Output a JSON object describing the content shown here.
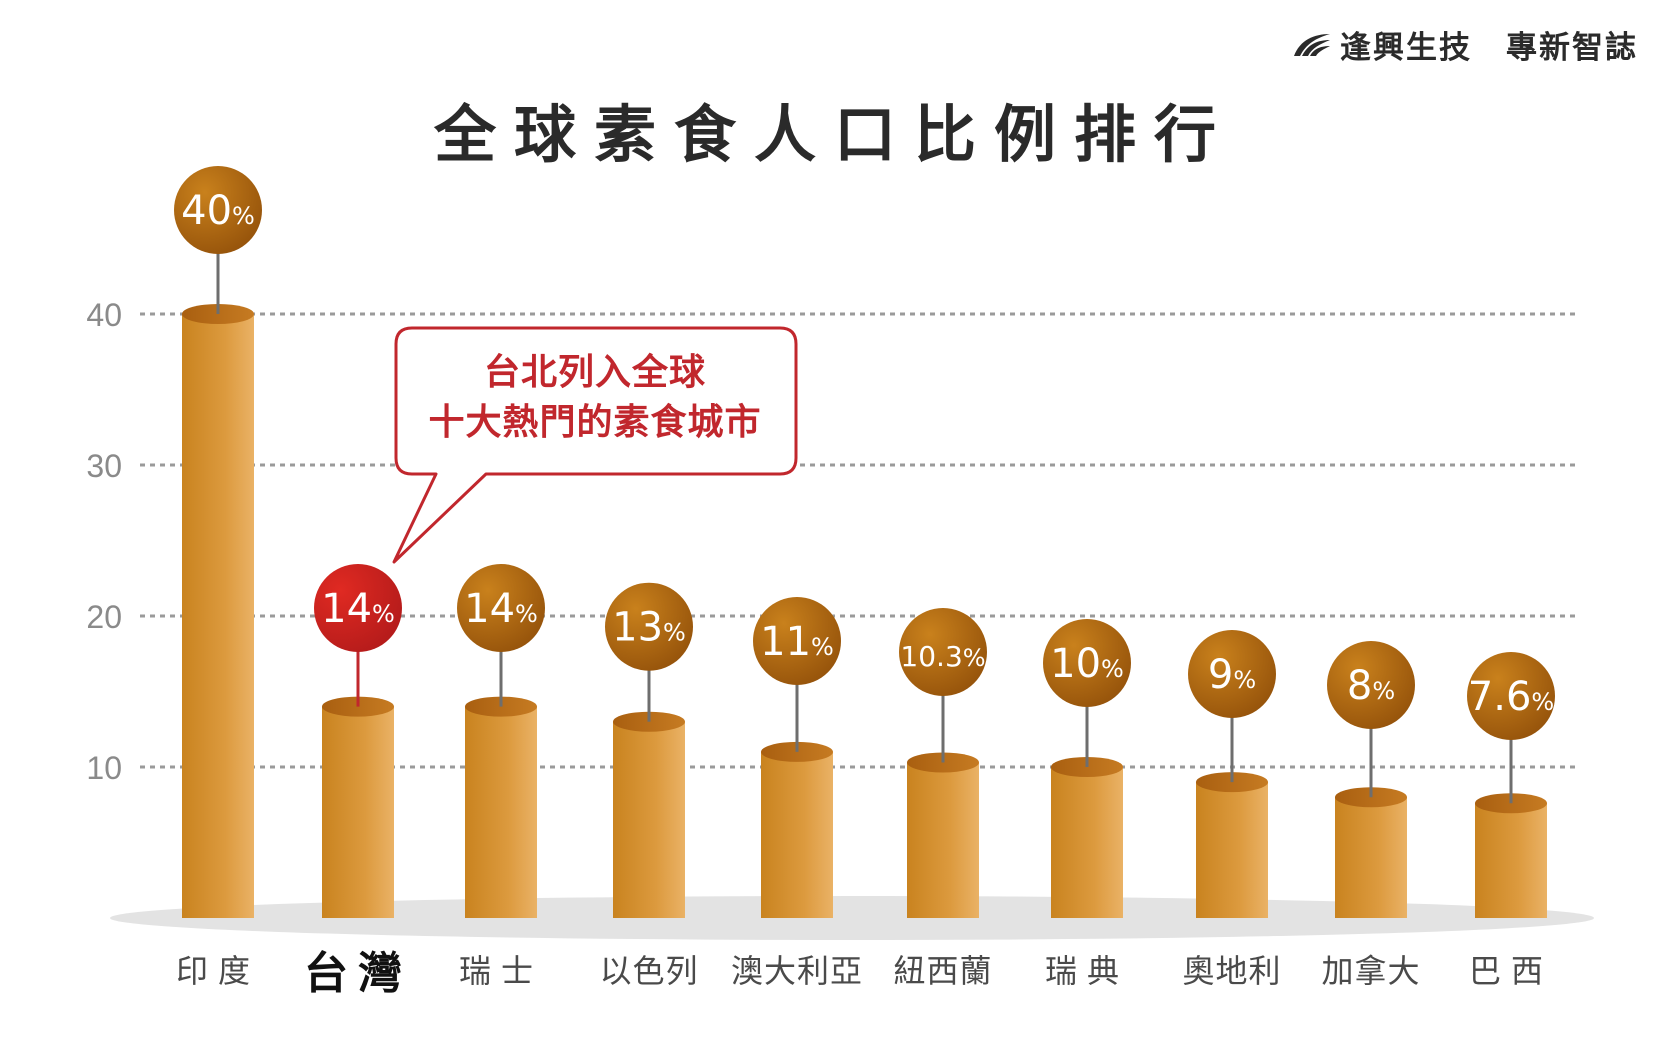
{
  "brand": {
    "name": "逢興生技",
    "publication": "專新智誌",
    "logo_icon": "swoosh-logo-icon"
  },
  "colors": {
    "bar": "#d9952f",
    "bubble": "#a8620a",
    "highlight": "#c1272d",
    "grid": "#9a9a9a",
    "callout_border": "#c1272d"
  },
  "callout": {
    "line1": "台北列入全球",
    "line2": "十大熱門的素食城市"
  },
  "chart_data": {
    "type": "bar",
    "title": "全球素食人口比例排行",
    "categories": [
      "印度",
      "台灣",
      "瑞士",
      "以色列",
      "澳大利亞",
      "紐西蘭",
      "瑞典",
      "奧地利",
      "加拿大",
      "巴西"
    ],
    "values": [
      40,
      14,
      14,
      13,
      11,
      10.3,
      10,
      9,
      8,
      7.6
    ],
    "value_labels": [
      "40",
      "14",
      "14",
      "13",
      "11",
      "10.3",
      "10",
      "9",
      "8",
      "7.6"
    ],
    "value_suffix": "%",
    "highlight_index": 1,
    "yticks": [
      10,
      20,
      30,
      40
    ],
    "grid": true
  }
}
